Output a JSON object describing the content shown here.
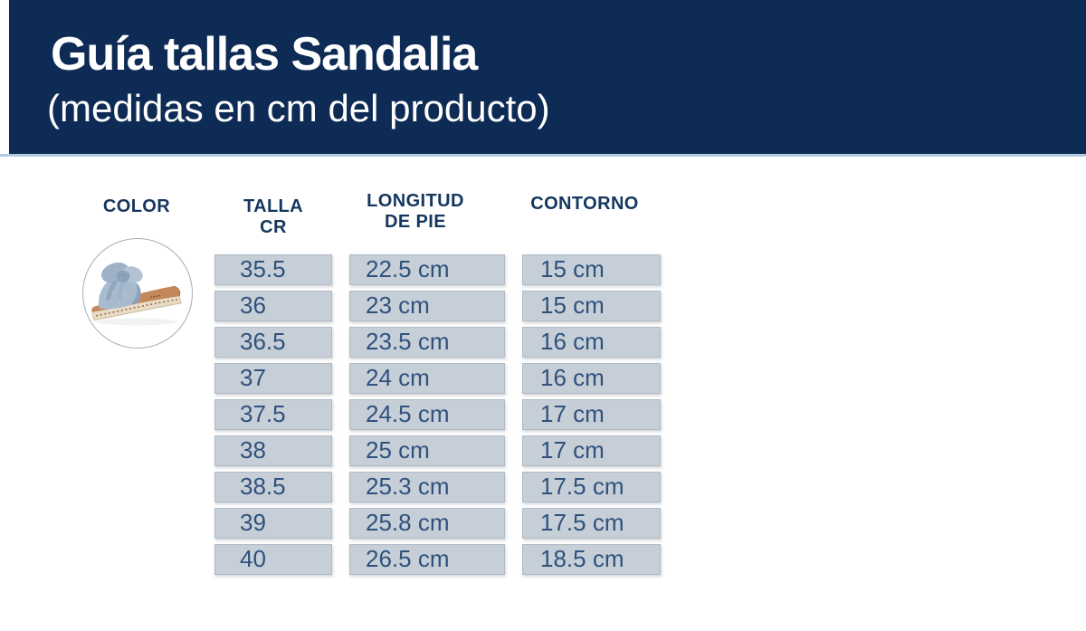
{
  "chart_data": {
    "type": "table",
    "title": "Guía tallas Sandalia",
    "subtitle": "(medidas en cm del producto)",
    "columns": [
      "COLOR",
      "TALLA CR",
      "LONGITUD DE PIE",
      "CONTORNO"
    ],
    "rows": [
      [
        "35.5",
        "22.5 cm",
        "15 cm"
      ],
      [
        "36",
        "23 cm",
        "15 cm"
      ],
      [
        "36.5",
        "23.5 cm",
        "16 cm"
      ],
      [
        "37",
        "24 cm",
        "16 cm"
      ],
      [
        "37.5",
        "24.5 cm",
        "17 cm"
      ],
      [
        "38",
        "25 cm",
        "17 cm"
      ],
      [
        "38.5",
        "25.3 cm",
        "17.5 cm"
      ],
      [
        "39",
        "25.8 cm",
        "17.5 cm"
      ],
      [
        "40",
        "26.5 cm",
        "18.5 cm"
      ]
    ],
    "legend_position": "none",
    "grid": false
  },
  "table": {
    "headers": {
      "color": "COLOR",
      "talla": [
        "TALLA",
        "CR"
      ],
      "longitud": [
        "LONGITUD",
        "DE PIE"
      ],
      "contorno": [
        "CONTORNO"
      ]
    }
  },
  "product_image": {
    "name": "sandal-photo",
    "shape": "circle"
  },
  "colors": {
    "banner_navy": "#0e2b55",
    "accent_line": "#aecbe0",
    "title_white": "#ffffff",
    "header_text": "#14365f",
    "cell_bg": "#c6cfd8",
    "cell_border": "#b0bbc6",
    "cell_text": "#2f517b",
    "circle_border": "#a8adb3",
    "sandal_strap": "#a7bace",
    "sandal_strap_dark": "#8ba0b9",
    "sandal_insole": "#c4875a",
    "sandal_sole": "#e9dbc6"
  }
}
